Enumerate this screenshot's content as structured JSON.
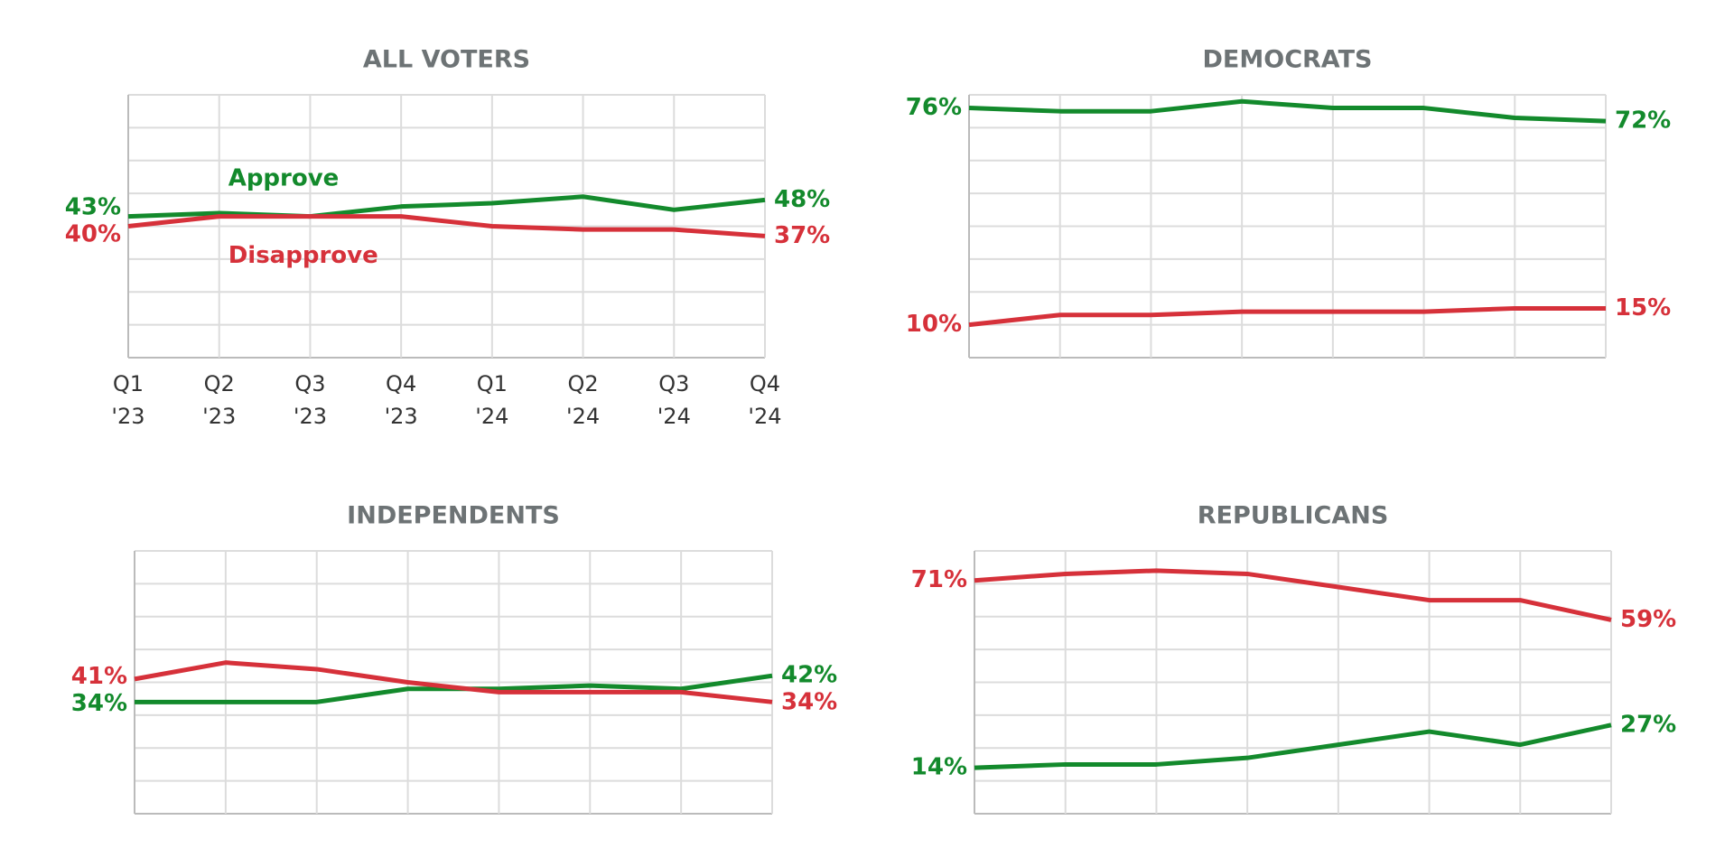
{
  "chart_data": [
    {
      "type": "line",
      "title": "ALL VOTERS",
      "legend": "inline",
      "categories": [
        "Q1 '23",
        "Q2 '23",
        "Q3 '23",
        "Q4 '23",
        "Q1 '24",
        "Q2 '24",
        "Q3 '24",
        "Q4 '24"
      ],
      "ylim": [
        0,
        80
      ],
      "yticks": [
        0,
        10,
        20,
        30,
        40,
        50,
        60,
        70,
        80
      ],
      "grid": true,
      "series": [
        {
          "name": "Approve",
          "color": "#138a2c",
          "values": [
            43,
            44,
            43,
            46,
            47,
            49,
            45,
            48
          ],
          "value_labels": [
            "43%",
            null,
            null,
            null,
            null,
            null,
            null,
            "48%"
          ]
        },
        {
          "name": "Disapprove",
          "color": "#d6313a",
          "values": [
            40,
            43,
            43,
            43,
            40,
            39,
            39,
            37
          ],
          "value_labels": [
            "40%",
            null,
            null,
            null,
            null,
            null,
            null,
            "37%"
          ]
        }
      ]
    },
    {
      "type": "line",
      "title": "DEMOCRATS",
      "ylim": [
        0,
        80
      ],
      "yticks": [
        0,
        10,
        20,
        30,
        40,
        50,
        60,
        70,
        80
      ],
      "grid": true,
      "series": [
        {
          "color": "#138a2c",
          "values": [
            76,
            75,
            75,
            78,
            76,
            76,
            73,
            72
          ],
          "value_labels": [
            "76%",
            null,
            null,
            null,
            null,
            null,
            null,
            "72%"
          ]
        },
        {
          "color": "#d6313a",
          "values": [
            10,
            13,
            13,
            14,
            14,
            14,
            15,
            15
          ],
          "value_labels": [
            "10%",
            null,
            null,
            null,
            null,
            null,
            null,
            "15%"
          ]
        }
      ]
    },
    {
      "type": "line",
      "title": "INDEPENDENTS",
      "ylim": [
        0,
        80
      ],
      "yticks": [
        0,
        10,
        20,
        30,
        40,
        50,
        60,
        70,
        80
      ],
      "grid": true,
      "series": [
        {
          "color": "#138a2c",
          "values": [
            34,
            34,
            34,
            38,
            38,
            39,
            38,
            42
          ],
          "value_labels": [
            "34%",
            null,
            null,
            null,
            null,
            null,
            null,
            "42%"
          ]
        },
        {
          "color": "#d6313a",
          "values": [
            41,
            46,
            44,
            40,
            37,
            37,
            37,
            34
          ],
          "value_labels": [
            "41%",
            null,
            null,
            null,
            null,
            null,
            null,
            "34%"
          ]
        }
      ]
    },
    {
      "type": "line",
      "title": "REPUBLICANS",
      "ylim": [
        0,
        80
      ],
      "yticks": [
        0,
        10,
        20,
        30,
        40,
        50,
        60,
        70,
        80
      ],
      "grid": true,
      "series": [
        {
          "color": "#138a2c",
          "values": [
            14,
            15,
            15,
            17,
            21,
            25,
            21,
            27
          ],
          "value_labels": [
            "14%",
            null,
            null,
            null,
            null,
            null,
            null,
            "27%"
          ]
        },
        {
          "color": "#d6313a",
          "values": [
            71,
            73,
            74,
            73,
            69,
            65,
            65,
            59
          ],
          "value_labels": [
            "71%",
            null,
            null,
            null,
            null,
            null,
            null,
            "59%"
          ]
        }
      ]
    }
  ]
}
